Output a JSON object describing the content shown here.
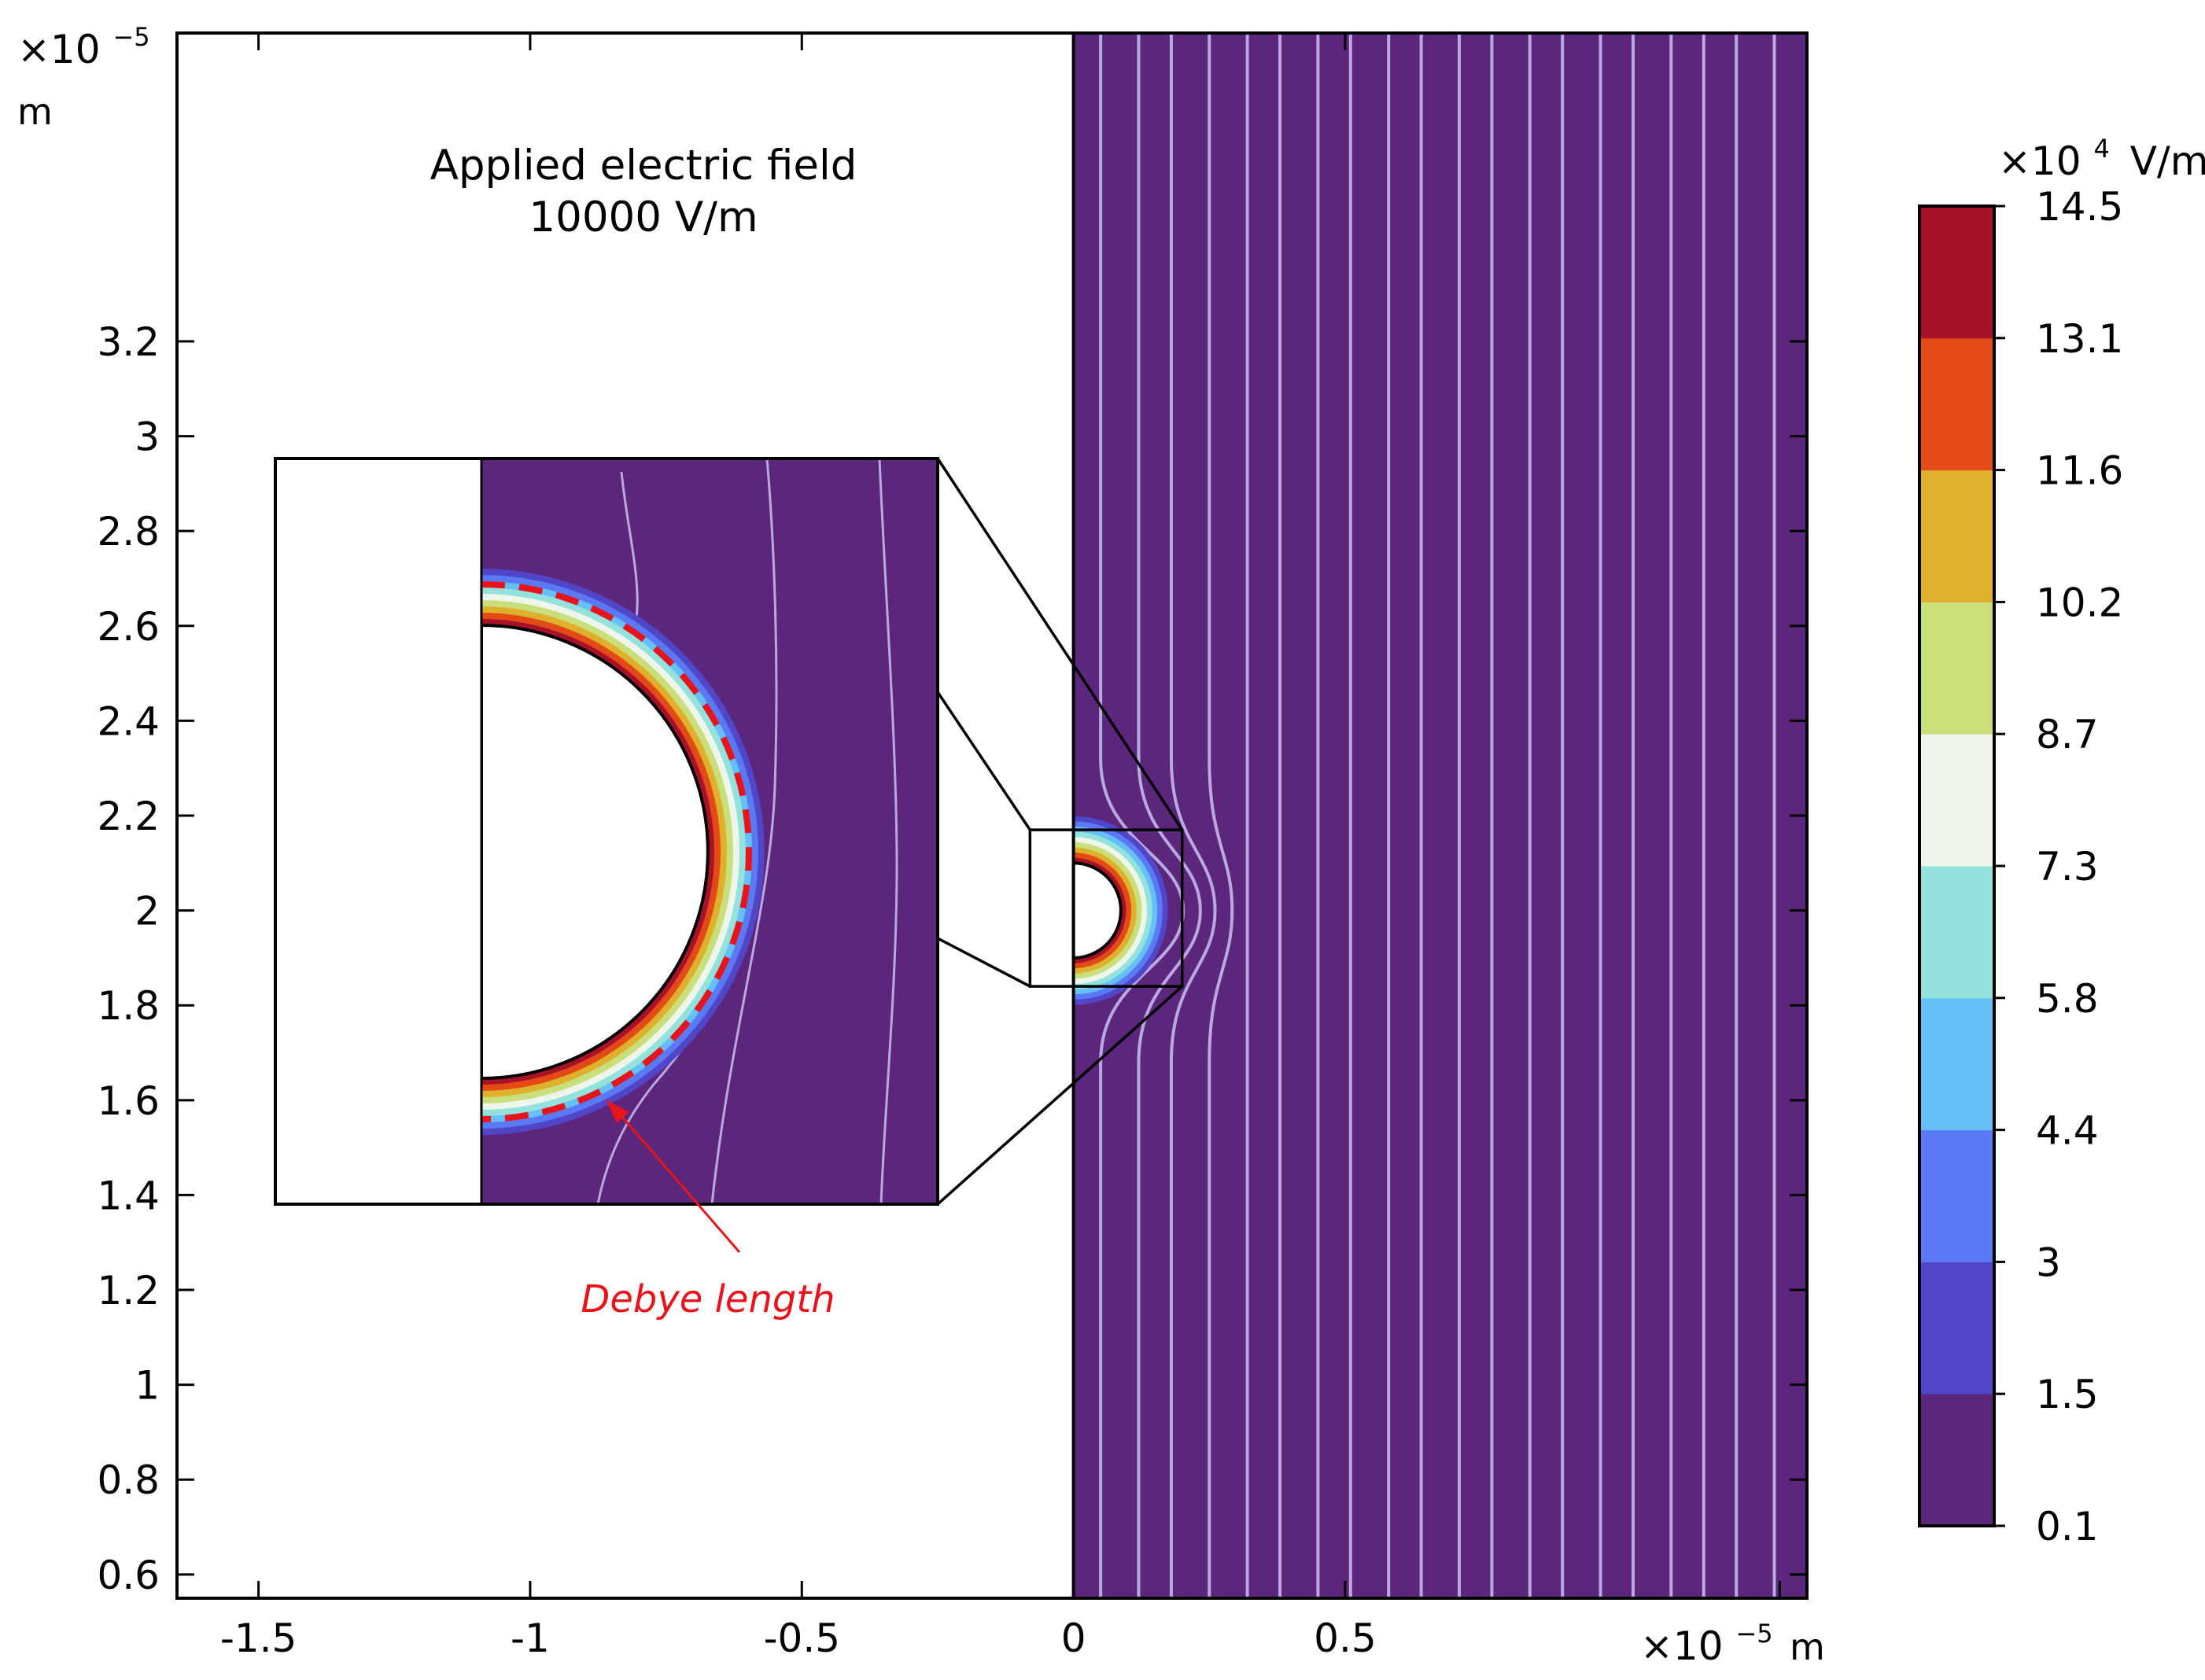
{
  "chart_data": {
    "type": "heatmap",
    "title": "",
    "annotation": {
      "line1": "Applied electric field",
      "line2": "10000 V/m"
    },
    "callout": "Debye length",
    "x_axis": {
      "range": [
        -1.65,
        1.35
      ],
      "tick_values": [
        -1.5,
        -1,
        -0.5,
        0,
        0.5
      ],
      "tick_labels": [
        "-1.5",
        "-1",
        "-0.5",
        "0",
        "0.5"
      ],
      "multiplier_base": "×10",
      "multiplier_exp": "−5",
      "unit": "m"
    },
    "y_axis": {
      "range": [
        0.55,
        3.85
      ],
      "tick_values": [
        0.6,
        0.8,
        1,
        1.2,
        1.4,
        1.6,
        1.8,
        2,
        2.2,
        2.4,
        2.6,
        2.8,
        3,
        3.2
      ],
      "tick_labels": [
        "0.6",
        "0.8",
        "1",
        "1.2",
        "1.4",
        "1.6",
        "1.8",
        "2",
        "2.2",
        "2.4",
        "2.6",
        "2.8",
        "3",
        "3.2"
      ],
      "multiplier_base": "×10",
      "multiplier_exp": "−5",
      "unit": "m"
    },
    "colorbar": {
      "unit_base": "×10",
      "unit_exp": "4",
      "unit_suffix": "V/m",
      "levels": [
        {
          "value": 0.1,
          "label": "0.1",
          "color": "#5b267c"
        },
        {
          "value": 1.5,
          "label": "1.5",
          "color": "#5145c8"
        },
        {
          "value": 3,
          "label": "3",
          "color": "#5a79f5"
        },
        {
          "value": 4.4,
          "label": "4.4",
          "color": "#67bff8"
        },
        {
          "value": 5.8,
          "label": "5.8",
          "color": "#94e2dc"
        },
        {
          "value": 7.3,
          "label": "7.3",
          "color": "#eef6ec"
        },
        {
          "value": 8.7,
          "label": "8.7",
          "color": "#c8df7c"
        },
        {
          "value": 10.2,
          "label": "10.2",
          "color": "#dfb02c"
        },
        {
          "value": 11.6,
          "label": "11.6",
          "color": "#e34a15"
        },
        {
          "value": 13.1,
          "label": "13.1",
          "color": "#a7122a"
        },
        {
          "value": 14.5,
          "label": "14.5",
          "color": null
        }
      ]
    },
    "domain": {
      "x_start": 0,
      "particle_center_y": 2.0,
      "particle_radius": 0.1,
      "debye_length": 0.01
    },
    "zoom_window": {
      "x_range": [
        -0.08,
        0.2
      ],
      "y_range": [
        1.84,
        2.17
      ]
    },
    "streamline_x_positions": [
      0.05,
      0.12,
      0.18,
      0.25,
      0.32,
      0.38,
      0.45,
      0.51,
      0.58,
      0.64,
      0.71,
      0.77,
      0.84,
      0.9,
      0.97,
      1.03,
      1.1,
      1.16,
      1.22,
      1.29
    ],
    "colors": {
      "background": "#5b267c",
      "streamline": "#b9a9e0",
      "debye_line": "#e8141c",
      "debye_text": "#e8141c"
    }
  }
}
